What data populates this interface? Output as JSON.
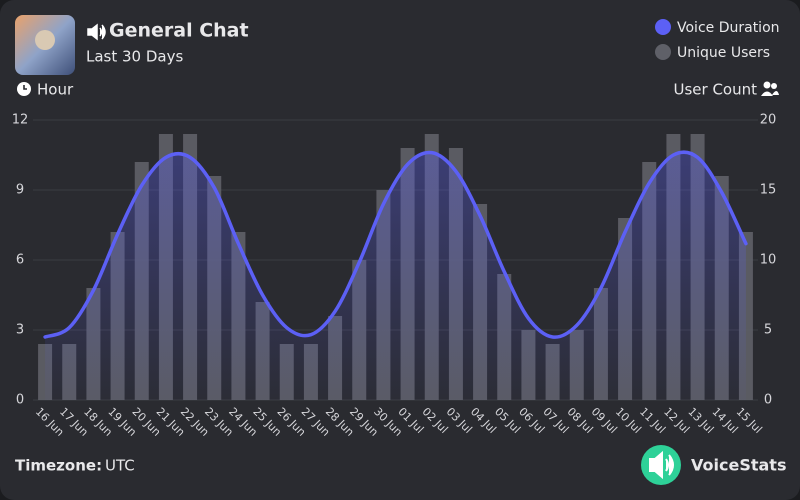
{
  "chart_data": {
    "type": "bar_line",
    "title": "General Chat",
    "subtitle": "Last 30 Days",
    "y_label": "Hour",
    "y2_label": "User Count",
    "categories": [
      "16 Jun",
      "17 Jun",
      "18 Jun",
      "19 Jun",
      "20 Jun",
      "21 Jun",
      "22 Jun",
      "23 Jun",
      "24 Jun",
      "25 Jun",
      "26 Jun",
      "27 Jun",
      "28 Jun",
      "29 Jun",
      "30 Jun",
      "01 Jul",
      "02 Jul",
      "03 Jul",
      "04 Jul",
      "05 Jul",
      "06 Jul",
      "07 Jul",
      "08 Jul",
      "09 Jul",
      "10 Jul",
      "11 Jul",
      "12 Jul",
      "13 Jul",
      "14 Jul",
      "15 Jul"
    ],
    "series": [
      {
        "name": "Voice Duration",
        "color": "#5c60f5",
        "type": "line",
        "values": [
          2.7,
          3.1,
          4.7,
          7.1,
          9.2,
          10.4,
          10.4,
          9.1,
          6.7,
          4.5,
          3.1,
          2.8,
          3.8,
          5.9,
          8.4,
          10.1,
          10.6,
          9.8,
          7.9,
          5.5,
          3.5,
          2.7,
          3.2,
          4.8,
          7.2,
          9.3,
          10.5,
          10.4,
          8.9,
          6.7
        ]
      },
      {
        "name": "Unique Users",
        "color": "#5f6068",
        "type": "bar",
        "axis": "y2",
        "values": [
          4,
          4,
          8,
          12,
          17,
          19,
          19,
          16,
          12,
          7,
          4,
          4,
          6,
          10,
          15,
          18,
          19,
          18,
          14,
          9,
          5,
          4,
          5,
          8,
          13,
          17,
          19,
          19,
          16,
          12
        ]
      }
    ],
    "ylim": [
      0,
      12
    ],
    "yticks": [
      0,
      3,
      6,
      9,
      12
    ],
    "y2lim": [
      0,
      20
    ],
    "y2ticks": [
      0,
      5,
      10,
      15,
      20
    ],
    "grid": true
  },
  "footer": {
    "timezone_label": "Timezone:",
    "timezone": "UTC",
    "brand": "VoiceStats"
  }
}
